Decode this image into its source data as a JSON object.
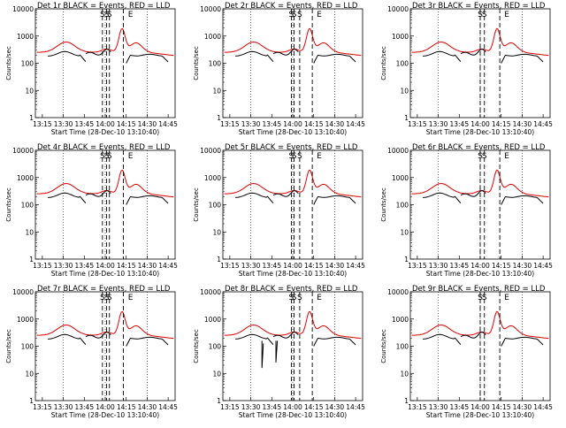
{
  "colors": {
    "events": "#000000",
    "lld": "#e00000",
    "grid": "#000000"
  },
  "chart_data": [
    {
      "type": "line",
      "title": "Det 1r BLACK = Events, RED = LLD",
      "ylabel": "Counts/sec",
      "xlabel": "Start Time (28-Dec-10 13:10:40)",
      "markers": [
        {
          "label": "S",
          "x": "13:58"
        },
        {
          "label": "S",
          "x": "14:01"
        },
        {
          "label": "S",
          "x": "14:03"
        },
        {
          "label": "E",
          "x": "14:13"
        }
      ],
      "series": [
        {
          "name": "LLD",
          "color": "red"
        },
        {
          "name": "Events",
          "color": "black"
        }
      ]
    },
    {
      "type": "line",
      "title": "Det 2r BLACK = Events, RED = LLD",
      "ylabel": "Counts/sec",
      "xlabel": "Start Time (28-Dec-10 13:10:40)",
      "markers": [
        {
          "label": "S",
          "x": "13:59"
        },
        {
          "label": "S",
          "x": "14:01"
        },
        {
          "label": "S",
          "x": "14:05"
        },
        {
          "label": "E",
          "x": "14:14"
        }
      ],
      "series": [
        {
          "name": "LLD",
          "color": "red"
        },
        {
          "name": "Events",
          "color": "black"
        }
      ]
    },
    {
      "type": "line",
      "title": "Det 3r BLACK = Events, RED = LLD",
      "ylabel": "Counts/sec",
      "xlabel": "Start Time (28-Dec-10 13:10:40)",
      "markers": [
        {
          "label": "S",
          "x": "14:00"
        },
        {
          "label": "S",
          "x": "14:03"
        },
        {
          "label": "E",
          "x": "14:14"
        }
      ],
      "series": [
        {
          "name": "LLD",
          "color": "red"
        },
        {
          "name": "Events",
          "color": "black"
        }
      ]
    },
    {
      "type": "line",
      "title": "Det 4r BLACK = Events, RED = LLD",
      "ylabel": "Counts/sec",
      "xlabel": "Start Time (28-Dec-10 13:10:40)",
      "markers": [
        {
          "label": "S",
          "x": "13:58"
        },
        {
          "label": "S",
          "x": "14:01"
        },
        {
          "label": "S",
          "x": "14:03"
        },
        {
          "label": "E",
          "x": "14:13"
        }
      ],
      "series": [
        {
          "name": "LLD",
          "color": "red"
        },
        {
          "name": "Events",
          "color": "black"
        }
      ]
    },
    {
      "type": "line",
      "title": "Det 5r BLACK = Events, RED = LLD",
      "ylabel": "Counts/sec",
      "xlabel": "Start Time (28-Dec-10 13:10:40)",
      "markers": [
        {
          "label": "S",
          "x": "13:59"
        },
        {
          "label": "S",
          "x": "14:01"
        },
        {
          "label": "S",
          "x": "14:05"
        },
        {
          "label": "E",
          "x": "14:14"
        }
      ],
      "series": [
        {
          "name": "LLD",
          "color": "red"
        },
        {
          "name": "Events",
          "color": "black"
        }
      ]
    },
    {
      "type": "line",
      "title": "Det 6r BLACK = Events, RED = LLD",
      "ylabel": "Counts/sec",
      "xlabel": "Start Time (28-Dec-10 13:10:40)",
      "markers": [
        {
          "label": "S",
          "x": "14:00"
        },
        {
          "label": "S",
          "x": "14:03"
        },
        {
          "label": "E",
          "x": "14:14"
        }
      ],
      "series": [
        {
          "name": "LLD",
          "color": "red"
        },
        {
          "name": "Events",
          "color": "black"
        }
      ]
    },
    {
      "type": "line",
      "title": "Det 7r BLACK = Events, RED = LLD",
      "ylabel": "Counts/sec",
      "xlabel": "Start Time (28-Dec-10 13:10:40)",
      "markers": [
        {
          "label": "S",
          "x": "13:58"
        },
        {
          "label": "S",
          "x": "14:01"
        },
        {
          "label": "S",
          "x": "14:03"
        },
        {
          "label": "E",
          "x": "14:13"
        }
      ],
      "series": [
        {
          "name": "LLD",
          "color": "red"
        },
        {
          "name": "Events",
          "color": "black"
        }
      ]
    },
    {
      "type": "line",
      "title": "Det 8r BLACK = Events, RED = LLD",
      "ylabel": "Counts/sec",
      "xlabel": "Start Time (28-Dec-10 13:10:40)",
      "markers": [
        {
          "label": "S",
          "x": "13:59"
        },
        {
          "label": "S",
          "x": "14:01"
        },
        {
          "label": "S",
          "x": "14:05"
        },
        {
          "label": "E",
          "x": "14:14"
        }
      ],
      "series": [
        {
          "name": "LLD",
          "color": "red"
        },
        {
          "name": "Events",
          "color": "black"
        }
      ]
    },
    {
      "type": "line",
      "title": "Det 9r BLACK = Events, RED = LLD",
      "ylabel": "Counts/sec",
      "xlabel": "Start Time (28-Dec-10 13:10:40)",
      "markers": [
        {
          "label": "S",
          "x": "14:00"
        },
        {
          "label": "S",
          "x": "14:03"
        },
        {
          "label": "E",
          "x": "14:14"
        }
      ],
      "series": [
        {
          "name": "LLD",
          "color": "red"
        },
        {
          "name": "Events",
          "color": "black"
        }
      ]
    }
  ],
  "axes": {
    "xticks": [
      "13:15",
      "13:30",
      "13:45",
      "14:00",
      "14:15",
      "14:30",
      "14:45"
    ],
    "yticks": [
      "1",
      "10",
      "100",
      "1000",
      "10000"
    ],
    "xlim": [
      "13:10",
      "14:50"
    ],
    "ylim": [
      1,
      10000
    ],
    "yscale": "log",
    "dotted_vertical_grid": [
      "13:30",
      "14:00",
      "14:30"
    ]
  }
}
